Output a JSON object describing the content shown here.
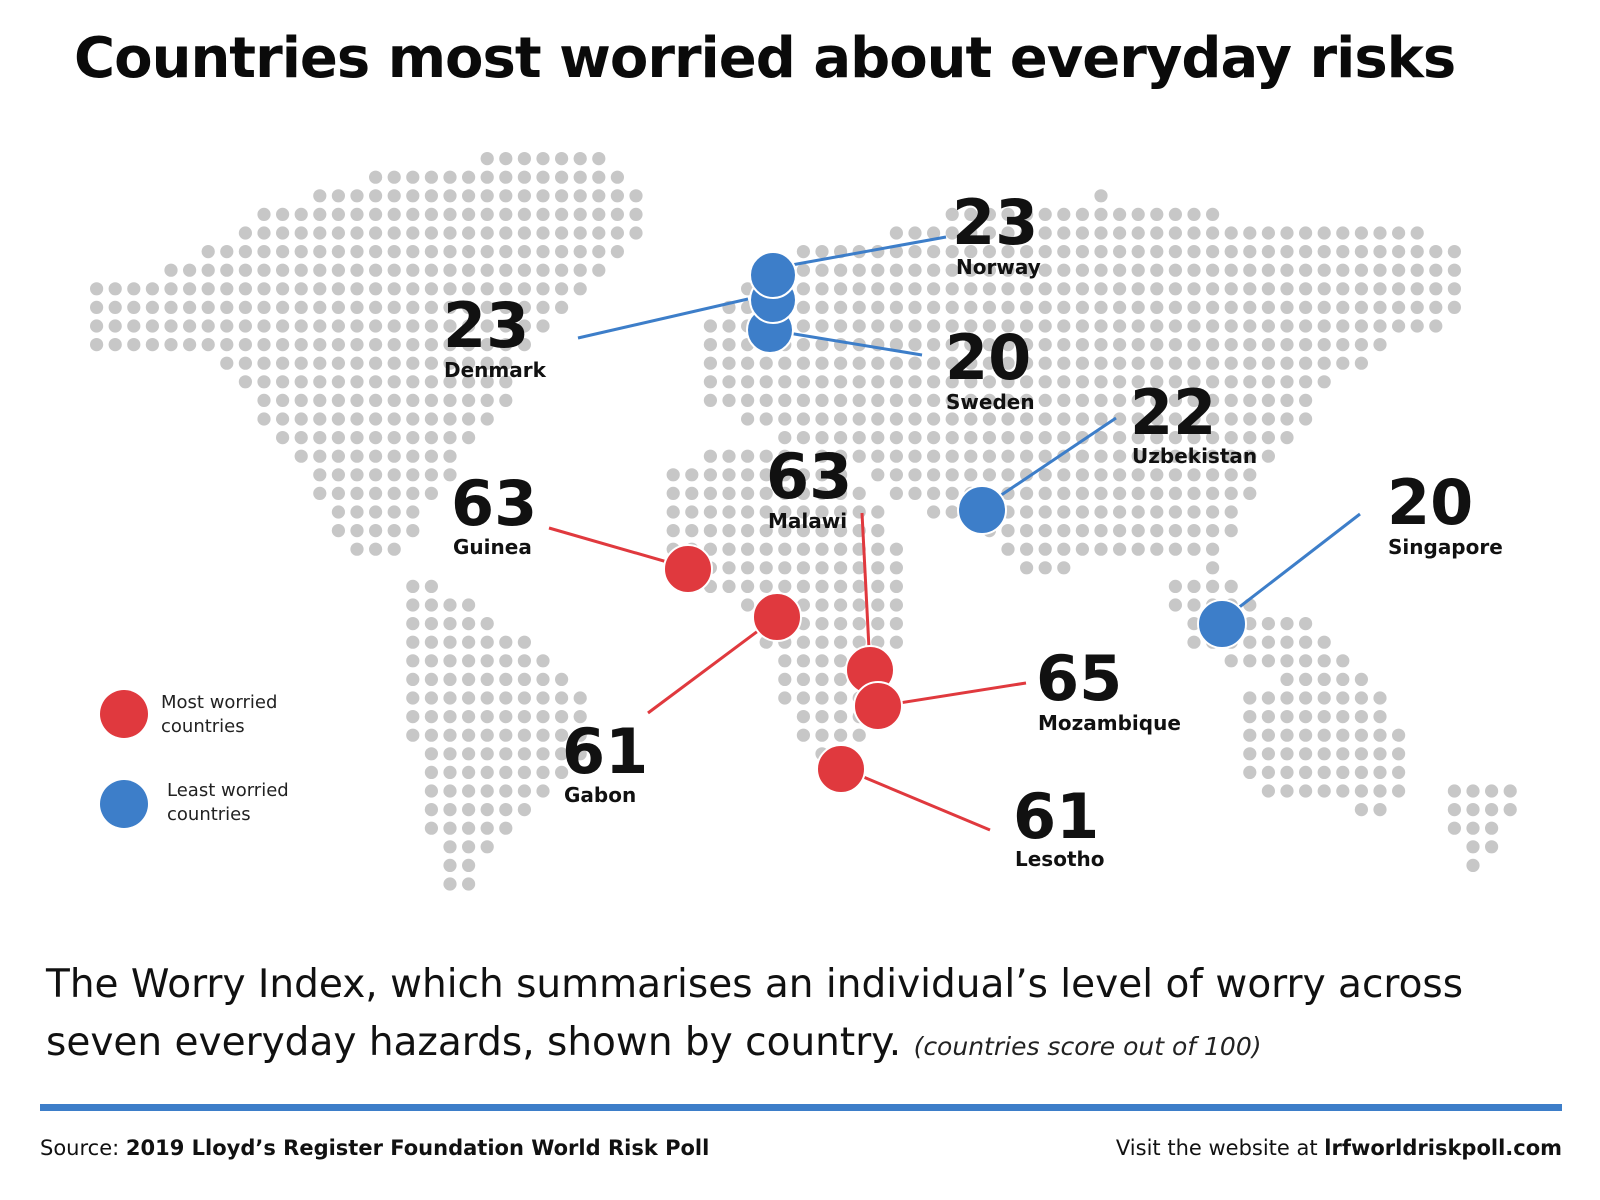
{
  "title": "Countries most worried about everyday risks",
  "colors": {
    "most_worried": "#e0393e",
    "least_worried": "#3d7ec9",
    "dot_grid": "#c7c7c7"
  },
  "legend": [
    {
      "label_line1": "Most worried",
      "label_line2": "countries",
      "color": "#e0393e"
    },
    {
      "label_line1": "Least worried",
      "label_line2": "countries",
      "color": "#3d7ec9"
    }
  ],
  "countries": [
    {
      "name": "Norway",
      "score": "23",
      "group": "least_worried"
    },
    {
      "name": "Denmark",
      "score": "23",
      "group": "least_worried"
    },
    {
      "name": "Sweden",
      "score": "20",
      "group": "least_worried"
    },
    {
      "name": "Uzbekistan",
      "score": "22",
      "group": "least_worried"
    },
    {
      "name": "Singapore",
      "score": "20",
      "group": "least_worried"
    },
    {
      "name": "Guinea",
      "score": "63",
      "group": "most_worried"
    },
    {
      "name": "Malawi",
      "score": "63",
      "group": "most_worried"
    },
    {
      "name": "Gabon",
      "score": "61",
      "group": "most_worried"
    },
    {
      "name": "Mozambique",
      "score": "65",
      "group": "most_worried"
    },
    {
      "name": "Lesotho",
      "score": "61",
      "group": "most_worried"
    }
  ],
  "subtitle": {
    "main": "The Worry Index, which summarises an individual’s level of worry across seven everyday hazards, shown by country.",
    "note": "(countries score out of 100)"
  },
  "footer": {
    "source_label": "Source: ",
    "source_name": "2019 Lloyd’s Register Foundation World Risk Poll",
    "website_label": "Visit the website at ",
    "website_url": "lrfworldriskpoll.com"
  }
}
